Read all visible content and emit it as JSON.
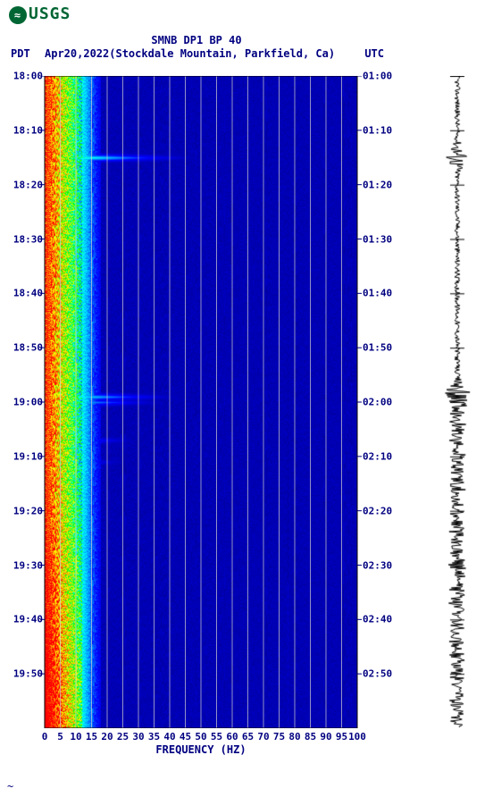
{
  "logo_text": "USGS",
  "title": "SMNB DP1 BP 40",
  "left_tz": "PDT",
  "date_station": "Apr20,2022(Stockdale Mountain, Parkfield, Ca)",
  "right_tz": "UTC",
  "x_axis_label": "FREQUENCY (HZ)",
  "colors": {
    "label": "#000080",
    "grid": "#d0d0d0",
    "border": "#000000",
    "seismo": "#000000",
    "background": "#ffffff"
  },
  "spectrogram": {
    "type": "spectrogram",
    "xlim": [
      0,
      100
    ],
    "ylim_minutes": [
      0,
      120
    ],
    "x_ticks": [
      0,
      5,
      10,
      15,
      20,
      25,
      30,
      35,
      40,
      45,
      50,
      55,
      60,
      65,
      70,
      75,
      80,
      85,
      90,
      95,
      100
    ],
    "y_left_ticks": [
      "18:00",
      "18:10",
      "18:20",
      "18:30",
      "18:40",
      "18:50",
      "19:00",
      "19:10",
      "19:20",
      "19:30",
      "19:40",
      "19:50"
    ],
    "y_right_ticks": [
      "01:00",
      "01:10",
      "01:20",
      "01:30",
      "01:40",
      "01:50",
      "02:00",
      "02:10",
      "02:20",
      "02:30",
      "02:40",
      "02:50"
    ],
    "grid_freq_lines": [
      5,
      10,
      15,
      20,
      25,
      30,
      35,
      40,
      45,
      50,
      55,
      60,
      65,
      70,
      75,
      80,
      85,
      90,
      95
    ],
    "colormap_stops": [
      {
        "val": 0.0,
        "color": "#00008b"
      },
      {
        "val": 0.25,
        "color": "#0000ff"
      },
      {
        "val": 0.45,
        "color": "#00ffff"
      },
      {
        "val": 0.6,
        "color": "#00ff00"
      },
      {
        "val": 0.75,
        "color": "#ffff00"
      },
      {
        "val": 0.88,
        "color": "#ff8c00"
      },
      {
        "val": 1.0,
        "color": "#ff0000"
      }
    ],
    "low_freq_hot_width_hz": 12,
    "events": [
      {
        "time_min": 15,
        "max_freq_hz": 55,
        "intensity": 0.65
      },
      {
        "time_min": 59,
        "max_freq_hz": 50,
        "intensity": 0.6
      },
      {
        "time_min": 60,
        "max_freq_hz": 45,
        "intensity": 0.55
      },
      {
        "time_min": 67,
        "max_freq_hz": 35,
        "intensity": 0.5
      },
      {
        "time_min": 71,
        "max_freq_hz": 30,
        "intensity": 0.5
      }
    ],
    "bottom_hotter_from_min": 75
  },
  "seismogram": {
    "type": "waveform",
    "color": "#000000",
    "base_amplitude": 3,
    "events": [
      {
        "time_min": 15,
        "amp": 14
      },
      {
        "time_min": 59,
        "amp": 22
      },
      {
        "time_min": 60,
        "amp": 10
      }
    ],
    "broad_noise_from_min": 58
  }
}
